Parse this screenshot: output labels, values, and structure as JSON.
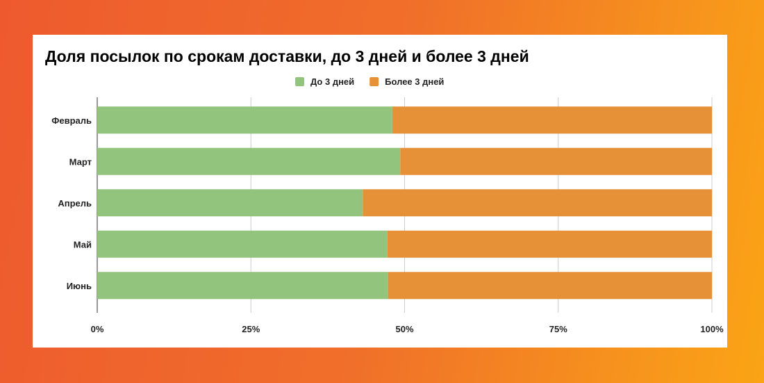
{
  "chart_data": {
    "type": "bar",
    "orientation": "horizontal",
    "stacked": "percent",
    "title": "Доля посылок по срокам доставки, до 3 дней и более 3 дней",
    "categories": [
      "Февраль",
      "Март",
      "Апрель",
      "Май",
      "Июнь"
    ],
    "series": [
      {
        "name": "До 3 дней",
        "color": "#93c47d",
        "values": [
          48.0,
          49.3,
          43.2,
          47.2,
          47.3
        ]
      },
      {
        "name": "Более 3 дней",
        "color": "#e69138",
        "values": [
          52.0,
          50.7,
          56.8,
          52.8,
          52.7
        ]
      }
    ],
    "xticks": [
      "0%",
      "25%",
      "50%",
      "75%",
      "100%"
    ],
    "xlim": [
      0,
      100
    ],
    "legend": "top",
    "grid": true
  }
}
